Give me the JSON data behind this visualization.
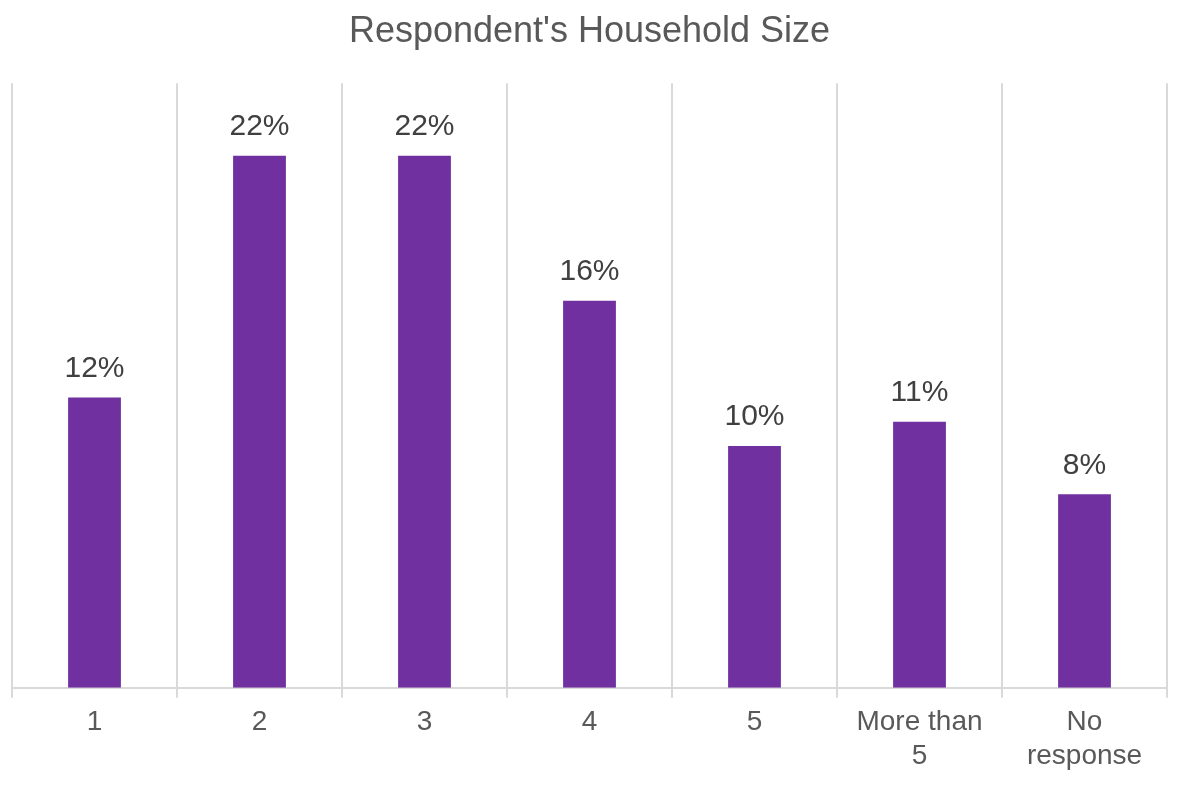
{
  "chart_data": {
    "type": "bar",
    "title": "Respondent's Household Size",
    "categories": [
      "1",
      "2",
      "3",
      "4",
      "5",
      "More than 5",
      "No response"
    ],
    "values": [
      12,
      22,
      22,
      16,
      10,
      11,
      8
    ],
    "value_labels": [
      "12%",
      "22%",
      "22%",
      "16%",
      "10%",
      "11%",
      "8%"
    ],
    "color": "#7030a0",
    "grid": "x"
  }
}
